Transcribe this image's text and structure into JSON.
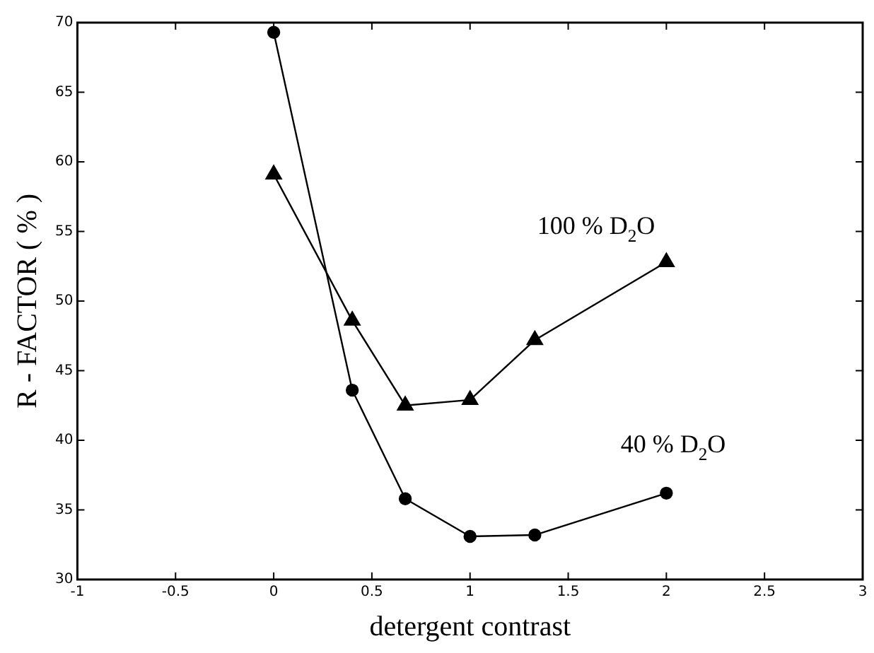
{
  "chart_data": {
    "type": "line",
    "xlabel": "detergent contrast",
    "ylabel": "R - FACTOR ( % )",
    "xlim": [
      -1,
      3
    ],
    "xticks": [
      -1,
      -0.5,
      0,
      0.5,
      1,
      1.5,
      2,
      2.5,
      3
    ],
    "ylim": [
      30,
      70
    ],
    "yticks": [
      30,
      35,
      40,
      45,
      50,
      55,
      60,
      65,
      70
    ],
    "legend": false,
    "series": [
      {
        "name": "100 % D$_{2}$O",
        "color": "#000000",
        "marker": "triangle",
        "x": [
          0,
          0.4,
          0.67,
          1,
          1.33,
          2
        ],
        "values": [
          59.1,
          48.6,
          42.5,
          42.9,
          47.2,
          52.8
        ]
      },
      {
        "name": "40 % D$_{2}$O",
        "color": "#000000",
        "marker": "circle",
        "x": [
          0,
          0.4,
          0.67,
          1,
          1.33,
          2
        ],
        "values": [
          69.3,
          43.6,
          35.8,
          33.1,
          33.2,
          36.2
        ]
      }
    ]
  }
}
